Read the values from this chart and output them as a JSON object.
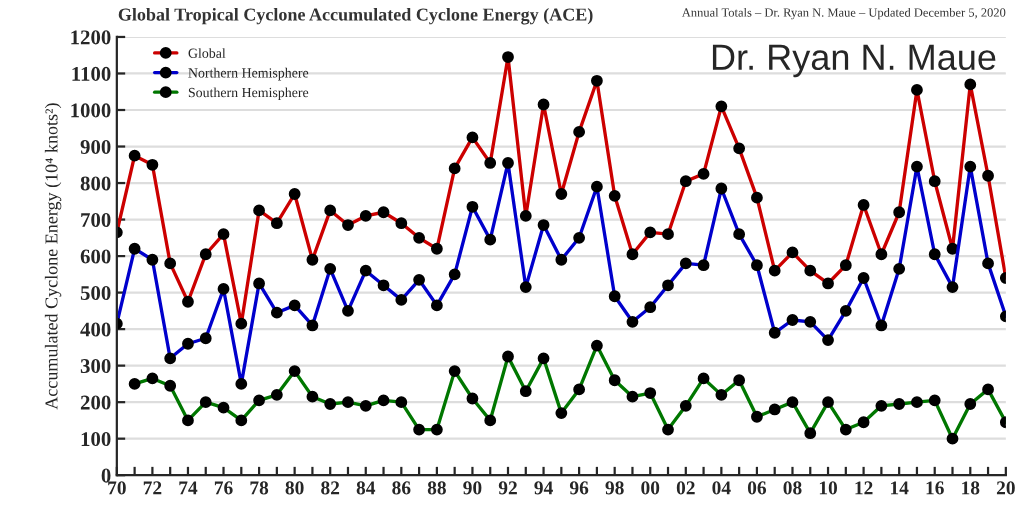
{
  "chart_data": {
    "type": "line",
    "title": "Global Tropical Cyclone Accumulated Cyclone Energy (ACE)",
    "subtitle": "Annual Totals – Dr. Ryan N. Maue – Updated December 5, 2020",
    "ylabel": "Accumulated Cyclone Energy (10⁴ knots²)",
    "annotations": [
      "Dr. Ryan N. Maue"
    ],
    "x": [
      1970,
      1971,
      1972,
      1973,
      1974,
      1975,
      1976,
      1977,
      1978,
      1979,
      1980,
      1981,
      1982,
      1983,
      1984,
      1985,
      1986,
      1987,
      1988,
      1989,
      1990,
      1991,
      1992,
      1993,
      1994,
      1995,
      1996,
      1997,
      1998,
      1999,
      2000,
      2001,
      2002,
      2003,
      2004,
      2005,
      2006,
      2007,
      2008,
      2009,
      2010,
      2011,
      2012,
      2013,
      2014,
      2015,
      2016,
      2017,
      2018,
      2019,
      2020
    ],
    "series": [
      {
        "name": "Global",
        "color": "#cc0000",
        "values": [
          665,
          875,
          850,
          580,
          475,
          605,
          660,
          415,
          725,
          690,
          770,
          590,
          725,
          685,
          710,
          720,
          690,
          650,
          620,
          840,
          925,
          855,
          1145,
          710,
          1015,
          770,
          940,
          1080,
          765,
          605,
          665,
          660,
          805,
          825,
          1010,
          895,
          760,
          560,
          610,
          560,
          525,
          575,
          740,
          605,
          720,
          1055,
          805,
          620,
          1070,
          820,
          540
        ]
      },
      {
        "name": "Northern Hemisphere",
        "color": "#0000cc",
        "values": [
          415,
          620,
          590,
          320,
          360,
          375,
          510,
          250,
          525,
          445,
          465,
          410,
          565,
          450,
          560,
          520,
          480,
          535,
          465,
          550,
          735,
          645,
          855,
          515,
          685,
          590,
          650,
          790,
          490,
          420,
          460,
          520,
          580,
          575,
          785,
          660,
          575,
          390,
          425,
          420,
          370,
          450,
          540,
          410,
          565,
          845,
          605,
          515,
          845,
          580,
          435
        ]
      },
      {
        "name": "Southern Hemisphere",
        "color": "#007700",
        "values": [
          null,
          250,
          265,
          245,
          150,
          200,
          185,
          150,
          205,
          220,
          285,
          215,
          195,
          200,
          190,
          205,
          200,
          125,
          125,
          285,
          210,
          150,
          325,
          230,
          320,
          170,
          235,
          355,
          260,
          215,
          225,
          125,
          190,
          265,
          220,
          260,
          160,
          180,
          200,
          115,
          200,
          125,
          145,
          190,
          195,
          200,
          205,
          100,
          195,
          235,
          145
        ]
      }
    ],
    "xlim": [
      1970,
      2020
    ],
    "ylim": [
      0,
      1200
    ],
    "xticks": [
      {
        "value": 1970,
        "label": "70"
      },
      {
        "value": 1971,
        "label": null
      },
      {
        "value": 1972,
        "label": "72"
      },
      {
        "value": 1973,
        "label": null
      },
      {
        "value": 1974,
        "label": "74"
      },
      {
        "value": 1975,
        "label": null
      },
      {
        "value": 1976,
        "label": "76"
      },
      {
        "value": 1977,
        "label": null
      },
      {
        "value": 1978,
        "label": "78"
      },
      {
        "value": 1979,
        "label": null
      },
      {
        "value": 1980,
        "label": "80"
      },
      {
        "value": 1981,
        "label": null
      },
      {
        "value": 1982,
        "label": "82"
      },
      {
        "value": 1983,
        "label": null
      },
      {
        "value": 1984,
        "label": "84"
      },
      {
        "value": 1985,
        "label": null
      },
      {
        "value": 1986,
        "label": "86"
      },
      {
        "value": 1987,
        "label": null
      },
      {
        "value": 1988,
        "label": "88"
      },
      {
        "value": 1989,
        "label": null
      },
      {
        "value": 1990,
        "label": "90"
      },
      {
        "value": 1991,
        "label": null
      },
      {
        "value": 1992,
        "label": "92"
      },
      {
        "value": 1993,
        "label": null
      },
      {
        "value": 1994,
        "label": "94"
      },
      {
        "value": 1995,
        "label": null
      },
      {
        "value": 1996,
        "label": "96"
      },
      {
        "value": 1997,
        "label": null
      },
      {
        "value": 1998,
        "label": "98"
      },
      {
        "value": 1999,
        "label": null
      },
      {
        "value": 2000,
        "label": "00"
      },
      {
        "value": 2001,
        "label": null
      },
      {
        "value": 2002,
        "label": "02"
      },
      {
        "value": 2003,
        "label": null
      },
      {
        "value": 2004,
        "label": "04"
      },
      {
        "value": 2005,
        "label": null
      },
      {
        "value": 2006,
        "label": "06"
      },
      {
        "value": 2007,
        "label": null
      },
      {
        "value": 2008,
        "label": "08"
      },
      {
        "value": 2009,
        "label": null
      },
      {
        "value": 2010,
        "label": "10"
      },
      {
        "value": 2011,
        "label": null
      },
      {
        "value": 2012,
        "label": "12"
      },
      {
        "value": 2013,
        "label": null
      },
      {
        "value": 2014,
        "label": "14"
      },
      {
        "value": 2015,
        "label": null
      },
      {
        "value": 2016,
        "label": "16"
      },
      {
        "value": 2017,
        "label": null
      },
      {
        "value": 2018,
        "label": "18"
      },
      {
        "value": 2019,
        "label": null
      },
      {
        "value": 2020,
        "label": "20"
      }
    ],
    "yticks": [
      0,
      100,
      200,
      300,
      400,
      500,
      600,
      700,
      800,
      900,
      1000,
      1100,
      1200
    ],
    "grid": "y",
    "legend": "top left",
    "marker": "circle",
    "line_style": "solid"
  }
}
